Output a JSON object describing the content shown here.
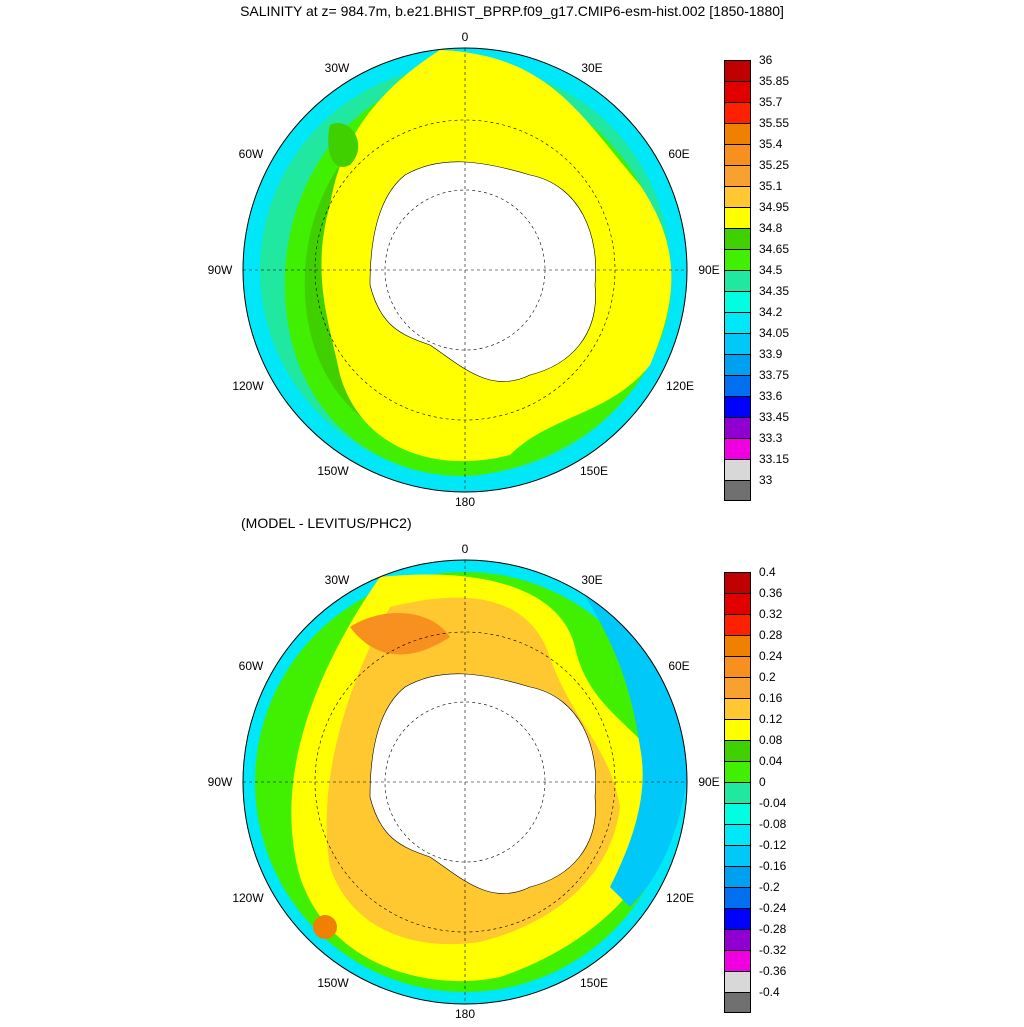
{
  "title": "SALINITY at z= 984.7m, b.e21.BHIST_BPRP.f09_g17.CMIP6-esm-hist.002 [1850-1880]",
  "subtitle": "(MODEL - LEVITUS/PHC2)",
  "longitude_labels": [
    "0",
    "30E",
    "60E",
    "90E",
    "120E",
    "150E",
    "180",
    "150W",
    "120W",
    "90W",
    "60W",
    "30W"
  ],
  "projection": "south polar stereographic",
  "colorbar_top": {
    "ticks": [
      "36",
      "35.85",
      "35.7",
      "35.55",
      "35.4",
      "35.25",
      "35.1",
      "34.95",
      "34.8",
      "34.65",
      "34.5",
      "34.35",
      "34.2",
      "34.05",
      "33.9",
      "33.75",
      "33.6",
      "33.45",
      "33.3",
      "33.15",
      "33"
    ],
    "colors": [
      "#c00000",
      "#e00000",
      "#ff2000",
      "#f08000",
      "#f89020",
      "#f8a030",
      "#ffc830",
      "#ffff00",
      "#40d000",
      "#40f000",
      "#20e8a0",
      "#00ffe0",
      "#00e8f8",
      "#00c8f8",
      "#00a0f0",
      "#0070f0",
      "#0000ff",
      "#9000d0",
      "#f000e0",
      "#d8d8d8",
      "#707070"
    ]
  },
  "colorbar_bottom": {
    "ticks": [
      "0.4",
      "0.36",
      "0.32",
      "0.28",
      "0.24",
      "0.2",
      "0.16",
      "0.12",
      "0.08",
      "0.04",
      "0",
      "-0.04",
      "-0.08",
      "-0.12",
      "-0.16",
      "-0.2",
      "-0.24",
      "-0.28",
      "-0.32",
      "-0.36",
      "-0.4"
    ],
    "colors": [
      "#c00000",
      "#e00000",
      "#ff2000",
      "#f08000",
      "#f89020",
      "#f8a030",
      "#ffc830",
      "#ffff00",
      "#40d000",
      "#40f000",
      "#20e8a0",
      "#00ffe0",
      "#00e8f8",
      "#00c8f8",
      "#00a0f0",
      "#0070f0",
      "#0000ff",
      "#9000d0",
      "#f000e0",
      "#d8d8d8",
      "#707070"
    ]
  }
}
